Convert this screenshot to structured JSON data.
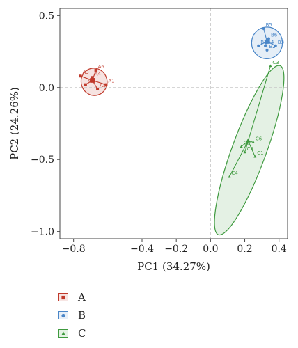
{
  "chart_data": {
    "type": "scatter",
    "xlabel": "PC1 (34.27%)",
    "ylabel": "PC2 (24.26%)",
    "xlim": [
      -0.88,
      0.45
    ],
    "ylim": [
      -1.05,
      0.55
    ],
    "xticks": [
      -0.8,
      -0.4,
      -0.2,
      0.0,
      0.2,
      0.4
    ],
    "xtick_labels": [
      "−0.8",
      "−0.4",
      "−0.2",
      "0.0",
      "0.2",
      "0.4"
    ],
    "yticks": [
      0.5,
      0.0,
      -0.5,
      -1.0
    ],
    "ytick_labels": [
      "0.5",
      "0.0",
      "−0.5",
      "−1.0"
    ],
    "reference_lines": {
      "x": 0,
      "y": 0
    },
    "legend_position": "bottom-left-outside",
    "series": [
      {
        "name": "A",
        "color": "#c0392b",
        "marker": "square",
        "centroid": [
          -0.69,
          0.05
        ],
        "ellipse": {
          "cx": -0.68,
          "cy": 0.04,
          "rx": 0.09,
          "ry": 0.08,
          "angle": -15
        },
        "points": [
          {
            "label": "A1",
            "x": -0.61,
            "y": 0.02
          },
          {
            "label": "A2",
            "x": -0.73,
            "y": 0.02
          },
          {
            "label": "A3",
            "x": -0.76,
            "y": 0.08
          },
          {
            "label": "A4",
            "x": -0.69,
            "y": 0.07
          },
          {
            "label": "A5",
            "x": -0.66,
            "y": -0.01
          },
          {
            "label": "A6",
            "x": -0.67,
            "y": 0.12
          }
        ]
      },
      {
        "name": "B",
        "color": "#4a86c8",
        "marker": "circle",
        "centroid": [
          0.33,
          0.32
        ],
        "ellipse": {
          "cx": 0.33,
          "cy": 0.31,
          "rx": 0.09,
          "ry": 0.11,
          "angle": 0
        },
        "points": [
          {
            "label": "B1",
            "x": 0.28,
            "y": 0.29
          },
          {
            "label": "B2",
            "x": 0.33,
            "y": 0.26
          },
          {
            "label": "B3",
            "x": 0.38,
            "y": 0.29
          },
          {
            "label": "B4",
            "x": 0.32,
            "y": 0.29
          },
          {
            "label": "B5",
            "x": 0.31,
            "y": 0.41
          },
          {
            "label": "B6",
            "x": 0.34,
            "y": 0.34
          }
        ]
      },
      {
        "name": "C",
        "color": "#3f9a3f",
        "marker": "triangle",
        "centroid": [
          0.22,
          -0.37
        ],
        "ellipse": {
          "cx": 0.226,
          "cy": -0.435,
          "rx": 0.625,
          "ry": 0.1,
          "angle": -70
        },
        "points": [
          {
            "label": "C1",
            "x": 0.26,
            "y": -0.48
          },
          {
            "label": "C2",
            "x": 0.18,
            "y": -0.41
          },
          {
            "label": "C3",
            "x": 0.35,
            "y": 0.15
          },
          {
            "label": "C4",
            "x": 0.11,
            "y": -0.62
          },
          {
            "label": "C5",
            "x": 0.2,
            "y": -0.45
          },
          {
            "label": "C6",
            "x": 0.25,
            "y": -0.38
          }
        ]
      }
    ]
  }
}
